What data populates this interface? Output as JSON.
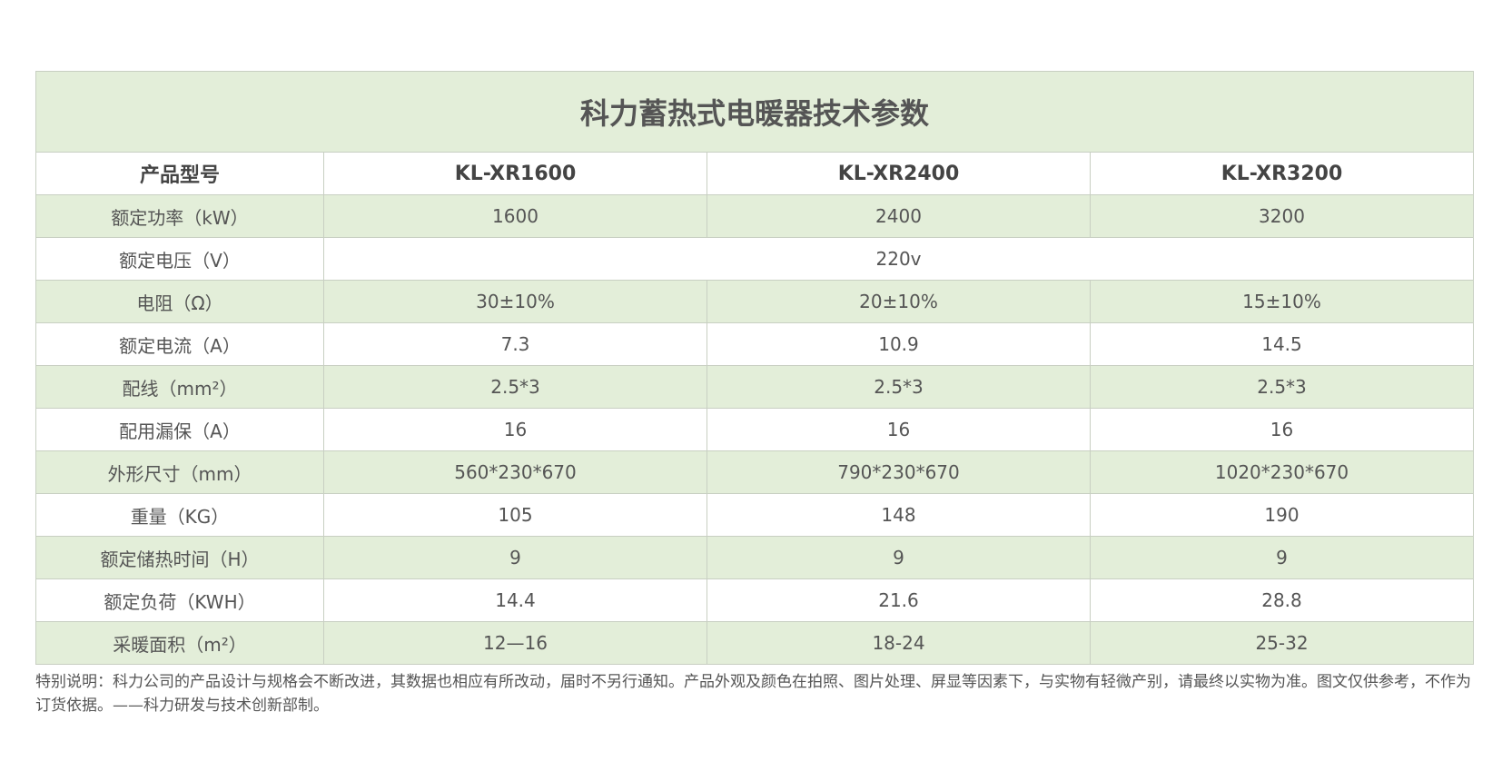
{
  "table": {
    "title": "科力蓄热式电暖器技术参数",
    "header": [
      "产品型号",
      "KL-XR1600",
      "KL-XR2400",
      "KL-XR3200"
    ],
    "rows": [
      [
        "额定功率（kW）",
        "1600",
        "2400",
        "3200"
      ],
      [
        "额定电压（V）",
        "220v"
      ],
      [
        "电阻（Ω）",
        "30±10%",
        "20±10%",
        "15±10%"
      ],
      [
        "额定电流（A）",
        "7.3",
        "10.9",
        "14.5"
      ],
      [
        "配线（mm²）",
        "2.5*3",
        "2.5*3",
        "2.5*3"
      ],
      [
        "配用漏保（A）",
        "16",
        "16",
        "16"
      ],
      [
        "外形尺寸（mm）",
        "560*230*670",
        "790*230*670",
        "1020*230*670"
      ],
      [
        "重量（KG）",
        "105",
        "148",
        "190"
      ],
      [
        "额定储热时间（H）",
        "9",
        "9",
        "9"
      ],
      [
        "额定负荷（KWH）",
        "14.4",
        "21.6",
        "28.8"
      ],
      [
        "采暖面积（m²）",
        "12—16",
        "18-24",
        "25-32"
      ]
    ]
  },
  "note": "特别说明：科力公司的产品设计与规格会不断改进，其数据也相应有所改动，届时不另行通知。产品外观及颜色在拍照、图片处理、屏显等因素下，与实物有轻微产别，请最终以实物为准。图文仅供参考，不作为订货依据。——科力研发与技术创新部制。"
}
